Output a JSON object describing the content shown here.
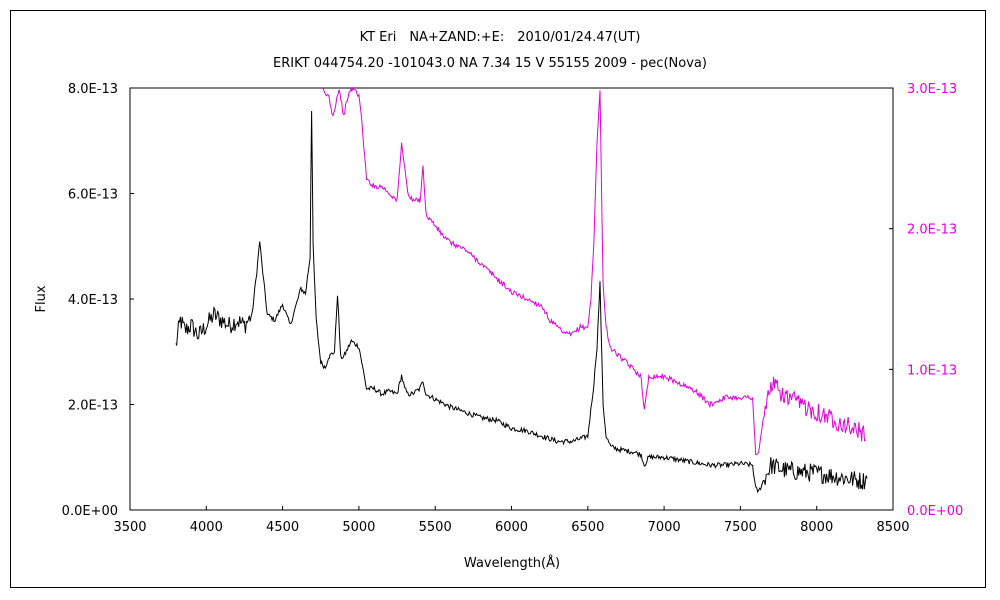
{
  "chart_data": {
    "type": "line",
    "title": "KT Eri　NA+ZAND:+E:　2010/01/24.47(UT)",
    "subtitle": "ERIKT 044754.20 -101043.0 NA 7.34 15 V 55155 2009 - pec(Nova)",
    "xlabel": "Wavelength(Å)",
    "ylabel": "Flux",
    "xlim": [
      3500,
      8500
    ],
    "x_ticks": [
      3500,
      4000,
      4500,
      5000,
      5500,
      6000,
      6500,
      7000,
      7500,
      8000,
      8500
    ],
    "ylim_left": [
      0,
      8e-13
    ],
    "y_ticks_left": [
      "0.0E+00",
      "2.0E-13",
      "4.0E-13",
      "6.0E-13",
      "8.0E-13"
    ],
    "y_tick_values_left": [
      0,
      2e-13,
      4e-13,
      6e-13,
      8e-13
    ],
    "ylim_right": [
      0,
      3e-13
    ],
    "y_ticks_right": [
      "0.0E+00",
      "1.0E-13",
      "2.0E-13",
      "3.0E-13"
    ],
    "y_tick_values_right": [
      0,
      1e-13,
      2e-13,
      3e-13
    ],
    "grid": false,
    "series": [
      {
        "axis": "left",
        "color": "#000000",
        "x": [
          3800,
          3830,
          3860,
          3900,
          3950,
          4000,
          4050,
          4100,
          4150,
          4200,
          4250,
          4300,
          4330,
          4350,
          4370,
          4400,
          4450,
          4500,
          4550,
          4600,
          4620,
          4650,
          4680,
          4690,
          4700,
          4720,
          4750,
          4780,
          4800,
          4840,
          4860,
          4880,
          4900,
          4950,
          5000,
          5050,
          5100,
          5150,
          5200,
          5250,
          5280,
          5300,
          5320,
          5350,
          5400,
          5420,
          5440,
          5500,
          5600,
          5700,
          5800,
          5900,
          6000,
          6100,
          6200,
          6300,
          6400,
          6500,
          6520,
          6540,
          6560,
          6580,
          6600,
          6620,
          6650,
          6700,
          6800,
          6850,
          6870,
          6900,
          7000,
          7100,
          7200,
          7300,
          7400,
          7500,
          7580,
          7600,
          7620,
          7650,
          7700,
          7800,
          7900,
          8000,
          8100,
          8200,
          8300,
          8330
        ],
        "values": [
          3.1e-13,
          3.6e-13,
          3.4e-13,
          3.5e-13,
          3.3e-13,
          3.5e-13,
          3.7e-13,
          3.6e-13,
          3.5e-13,
          3.6e-13,
          3.5e-13,
          3.7e-13,
          4.5e-13,
          5.1e-13,
          4.5e-13,
          3.7e-13,
          3.6e-13,
          3.9e-13,
          3.5e-13,
          4e-13,
          4.2e-13,
          4.1e-13,
          4.8e-13,
          7.6e-13,
          5e-13,
          3.6e-13,
          2.8e-13,
          2.7e-13,
          2.9e-13,
          3e-13,
          4.1e-13,
          2.9e-13,
          2.9e-13,
          3.2e-13,
          3.1e-13,
          2.3e-13,
          2.3e-13,
          2.2e-13,
          2.25e-13,
          2.2e-13,
          2.55e-13,
          2.3e-13,
          2.2e-13,
          2.2e-13,
          2.3e-13,
          2.45e-13,
          2.2e-13,
          2.1e-13,
          1.95e-13,
          1.85e-13,
          1.75e-13,
          1.7e-13,
          1.55e-13,
          1.5e-13,
          1.4e-13,
          1.3e-13,
          1.3e-13,
          1.4e-13,
          1.9e-13,
          2.4e-13,
          3.1e-13,
          4.3e-13,
          2e-13,
          1.4e-13,
          1.2e-13,
          1.15e-13,
          1.1e-13,
          1.05e-13,
          8.5e-14,
          1e-13,
          1e-13,
          9.5e-14,
          9e-14,
          8.5e-14,
          8.5e-14,
          8.8e-14,
          8.5e-14,
          4e-14,
          3.5e-14,
          5.5e-14,
          8.5e-14,
          7.5e-14,
          7.2e-14,
          7e-14,
          6.5e-14,
          6e-14,
          5.5e-14,
          6e-14
        ]
      },
      {
        "axis": "right",
        "color": "#e000e0",
        "x": [
          4760,
          4780,
          4800,
          4830,
          4850,
          4870,
          4900,
          4930,
          4960,
          5000,
          5020,
          5050,
          5100,
          5150,
          5200,
          5250,
          5280,
          5300,
          5320,
          5350,
          5400,
          5420,
          5440,
          5480,
          5550,
          5600,
          5700,
          5800,
          5900,
          6000,
          6100,
          6200,
          6250,
          6300,
          6350,
          6400,
          6450,
          6500,
          6520,
          6540,
          6560,
          6580,
          6600,
          6620,
          6650,
          6700,
          6800,
          6850,
          6870,
          6900,
          7000,
          7100,
          7200,
          7300,
          7400,
          7500,
          7550,
          7580,
          7600,
          7620,
          7650,
          7700,
          7800,
          7900,
          8000,
          8100,
          8200,
          8300,
          8320
        ],
        "values": [
          3e-13,
          2.95e-13,
          2.95e-13,
          2.8e-13,
          2.9e-13,
          3e-13,
          2.8e-13,
          2.95e-13,
          3e-13,
          2.95e-13,
          2.75e-13,
          2.35e-13,
          2.3e-13,
          2.3e-13,
          2.25e-13,
          2.2e-13,
          2.6e-13,
          2.45e-13,
          2.25e-13,
          2.2e-13,
          2.2e-13,
          2.45e-13,
          2.1e-13,
          2.05e-13,
          1.95e-13,
          1.9e-13,
          1.85e-13,
          1.75e-13,
          1.65e-13,
          1.55e-13,
          1.5e-13,
          1.45e-13,
          1.35e-13,
          1.3e-13,
          1.25e-13,
          1.25e-13,
          1.3e-13,
          1.3e-13,
          1.5e-13,
          1.9e-13,
          2.6e-13,
          3e-13,
          1.6e-13,
          1.3e-13,
          1.15e-13,
          1.1e-13,
          1e-13,
          9.5e-14,
          7e-14,
          9.5e-14,
          9.5e-14,
          9e-14,
          8.5e-14,
          7.5e-14,
          8e-14,
          8e-14,
          8e-14,
          8e-14,
          4e-14,
          4e-14,
          6.5e-14,
          9e-14,
          8e-14,
          7.5e-14,
          7e-14,
          6.5e-14,
          6e-14,
          5.5e-14,
          5e-14
        ]
      }
    ]
  }
}
